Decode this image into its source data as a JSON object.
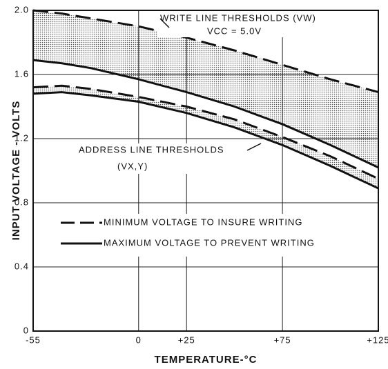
{
  "chart_data": {
    "type": "line",
    "ylabel": "INPUT VOLTAGE - VOLTS",
    "xlabel": "TEMPERATURE-°C",
    "x": [
      -55,
      -40,
      -25,
      0,
      25,
      50,
      75,
      100,
      125
    ],
    "series": [
      {
        "dash": true,
        "color": "#111",
        "values": [
          2.0,
          1.98,
          1.95,
          1.9,
          1.83,
          1.75,
          1.66,
          1.57,
          1.49
        ]
      },
      {
        "dash": false,
        "color": "#111",
        "values": [
          1.69,
          1.67,
          1.64,
          1.57,
          1.49,
          1.4,
          1.29,
          1.16,
          1.02
        ]
      },
      {
        "dash": true,
        "color": "#111",
        "values": [
          1.52,
          1.53,
          1.51,
          1.46,
          1.4,
          1.32,
          1.21,
          1.09,
          0.95
        ]
      },
      {
        "dash": false,
        "color": "#111",
        "values": [
          1.48,
          1.49,
          1.47,
          1.43,
          1.36,
          1.27,
          1.16,
          1.03,
          0.89
        ]
      }
    ],
    "bands": [
      [
        0,
        1
      ],
      [
        2,
        3
      ]
    ],
    "legend": [
      {
        "label": "MINIMUM VOLTAGE TO INSURE WRITING",
        "dash": true
      },
      {
        "label": "MAXIMUM VOLTAGE TO PREVENT WRITING",
        "dash": false
      }
    ],
    "annotations": [
      "WRITE LINE THRESHOLDS (VW)",
      "VCC = 5.0V",
      "ADDRESS LINE THRESHOLDS",
      "(VX,Y)"
    ],
    "xlim": [
      -55,
      125
    ],
    "xticks": [
      -55,
      0,
      {
        "value": 25,
        "label": "+25"
      },
      {
        "value": 75,
        "label": "+75"
      },
      {
        "value": 125,
        "label": "+125"
      }
    ],
    "ylim": [
      0,
      2
    ],
    "yticks": [
      0,
      0.4,
      0.8,
      1.2,
      1.6,
      {
        "value": 2,
        "label": "2.0"
      }
    ],
    "grid": true
  }
}
